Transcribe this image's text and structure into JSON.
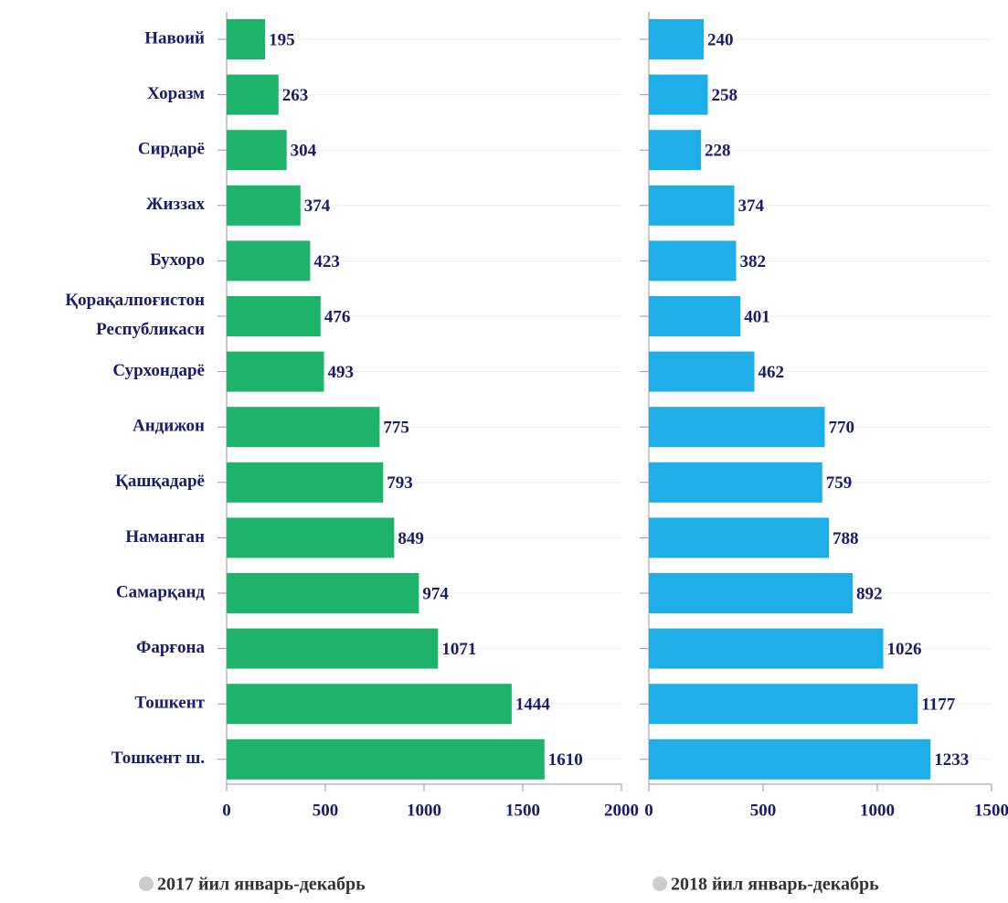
{
  "chart_data": [
    {
      "type": "bar",
      "orientation": "horizontal",
      "categories": [
        "Навоий",
        "Хоразм",
        "Сирдарё",
        "Жиззах",
        "Бухоро",
        "Қорақалпоғистон Республикаси",
        "Сурхондарё",
        "Андижон",
        "Қашқадарё",
        "Наманган",
        "Самарқанд",
        "Фарғона",
        "Тошкент",
        "Тошкент ш."
      ],
      "series": [
        {
          "name": "2017 йил январь-декабрь",
          "color": "#1db36b",
          "values": [
            195,
            263,
            304,
            374,
            423,
            476,
            493,
            775,
            793,
            849,
            974,
            1071,
            1444,
            1610
          ]
        }
      ],
      "xlim": [
        0,
        2000
      ],
      "xticks": [
        0,
        500,
        1000,
        1500,
        2000
      ],
      "grid": true
    },
    {
      "type": "bar",
      "orientation": "horizontal",
      "series": [
        {
          "name": "2018 йил январь-декабрь",
          "color": "#1eaee8",
          "values": [
            240,
            258,
            228,
            374,
            382,
            401,
            462,
            770,
            759,
            788,
            892,
            1026,
            1177,
            1233
          ]
        }
      ],
      "xlim": [
        0,
        1500
      ],
      "xticks": [
        0,
        500,
        1000,
        1500
      ],
      "grid": true
    }
  ]
}
